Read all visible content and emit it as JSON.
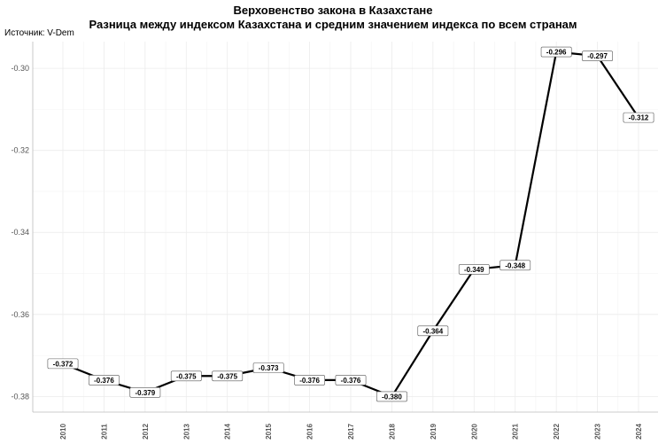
{
  "chart_data": {
    "type": "line",
    "title": "Верховенство закона в Казахстане",
    "subtitle": "Разница между индексом Казахстана и средним значением индекса по всем странам",
    "caption": "Источник: V-Dem",
    "x": [
      "2010",
      "2011",
      "2012",
      "2013",
      "2014",
      "2015",
      "2016",
      "2017",
      "2018",
      "2019",
      "2020",
      "2021",
      "2022",
      "2023",
      "2024"
    ],
    "series": [
      {
        "values": [
          -0.372,
          -0.376,
          -0.379,
          -0.375,
          -0.375,
          -0.373,
          -0.376,
          -0.376,
          -0.38,
          -0.364,
          -0.349,
          -0.348,
          -0.296,
          -0.297,
          -0.312
        ],
        "labels": [
          "-0.372",
          "-0.376",
          "-0.379",
          "-0.375",
          "-0.375",
          "-0.373",
          "-0.376",
          "-0.376",
          "-0.380",
          "-0.364",
          "-0.349",
          "-0.348",
          "-0.296",
          "-0.297",
          "-0.312"
        ],
        "color": "#000000"
      }
    ],
    "y_ticks": [
      "-0.30",
      "-0.32",
      "-0.34",
      "-0.36",
      "-0.38"
    ],
    "ylim": [
      -0.3838,
      -0.2935
    ],
    "grid": true,
    "legend": "none"
  }
}
